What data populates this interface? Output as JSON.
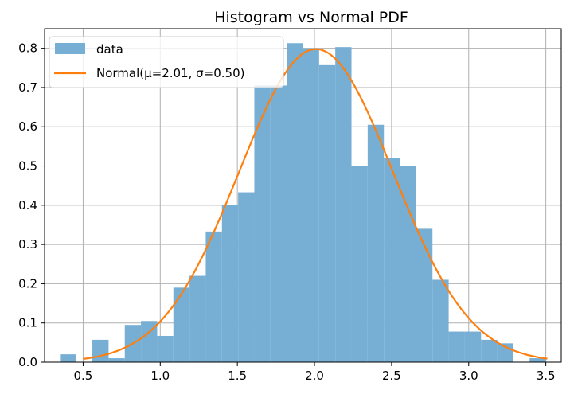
{
  "chart_data": {
    "type": "bar",
    "title": "Histogram vs Normal PDF",
    "xlabel": "",
    "ylabel": "",
    "xlim": [
      0.25,
      3.6
    ],
    "ylim": [
      0,
      0.85
    ],
    "xticks": [
      "0.5",
      "1.0",
      "1.5",
      "2.0",
      "2.5",
      "3.0",
      "3.5"
    ],
    "yticks": [
      "0.0",
      "0.1",
      "0.2",
      "0.3",
      "0.4",
      "0.5",
      "0.6",
      "0.7",
      "0.8"
    ],
    "grid": true,
    "legend": {
      "position": "top-left"
    },
    "histogram": {
      "name": "data",
      "color": "#77aed3",
      "bin_edges": [
        0.35,
        0.455,
        0.56,
        0.665,
        0.77,
        0.875,
        0.98,
        1.085,
        1.19,
        1.295,
        1.4,
        1.505,
        1.61,
        1.715,
        1.82,
        1.925,
        2.03,
        2.135,
        2.24,
        2.345,
        2.45,
        2.555,
        2.66,
        2.765,
        2.87,
        2.975,
        3.08,
        3.185,
        3.29,
        3.395,
        3.5
      ],
      "values": [
        0.02,
        0.0,
        0.057,
        0.01,
        0.095,
        0.105,
        0.067,
        0.19,
        0.22,
        0.333,
        0.4,
        0.433,
        0.705,
        0.705,
        0.813,
        0.8,
        0.757,
        0.803,
        0.5,
        0.605,
        0.52,
        0.5,
        0.34,
        0.21,
        0.078,
        0.078,
        0.057,
        0.048,
        0.0,
        0.01
      ]
    },
    "pdf": {
      "name": "Normal(μ=2.01, σ=0.50)",
      "color": "#ff7f0e",
      "mu": 2.01,
      "sigma": 0.5,
      "x_range": [
        0.5,
        3.51
      ]
    }
  }
}
